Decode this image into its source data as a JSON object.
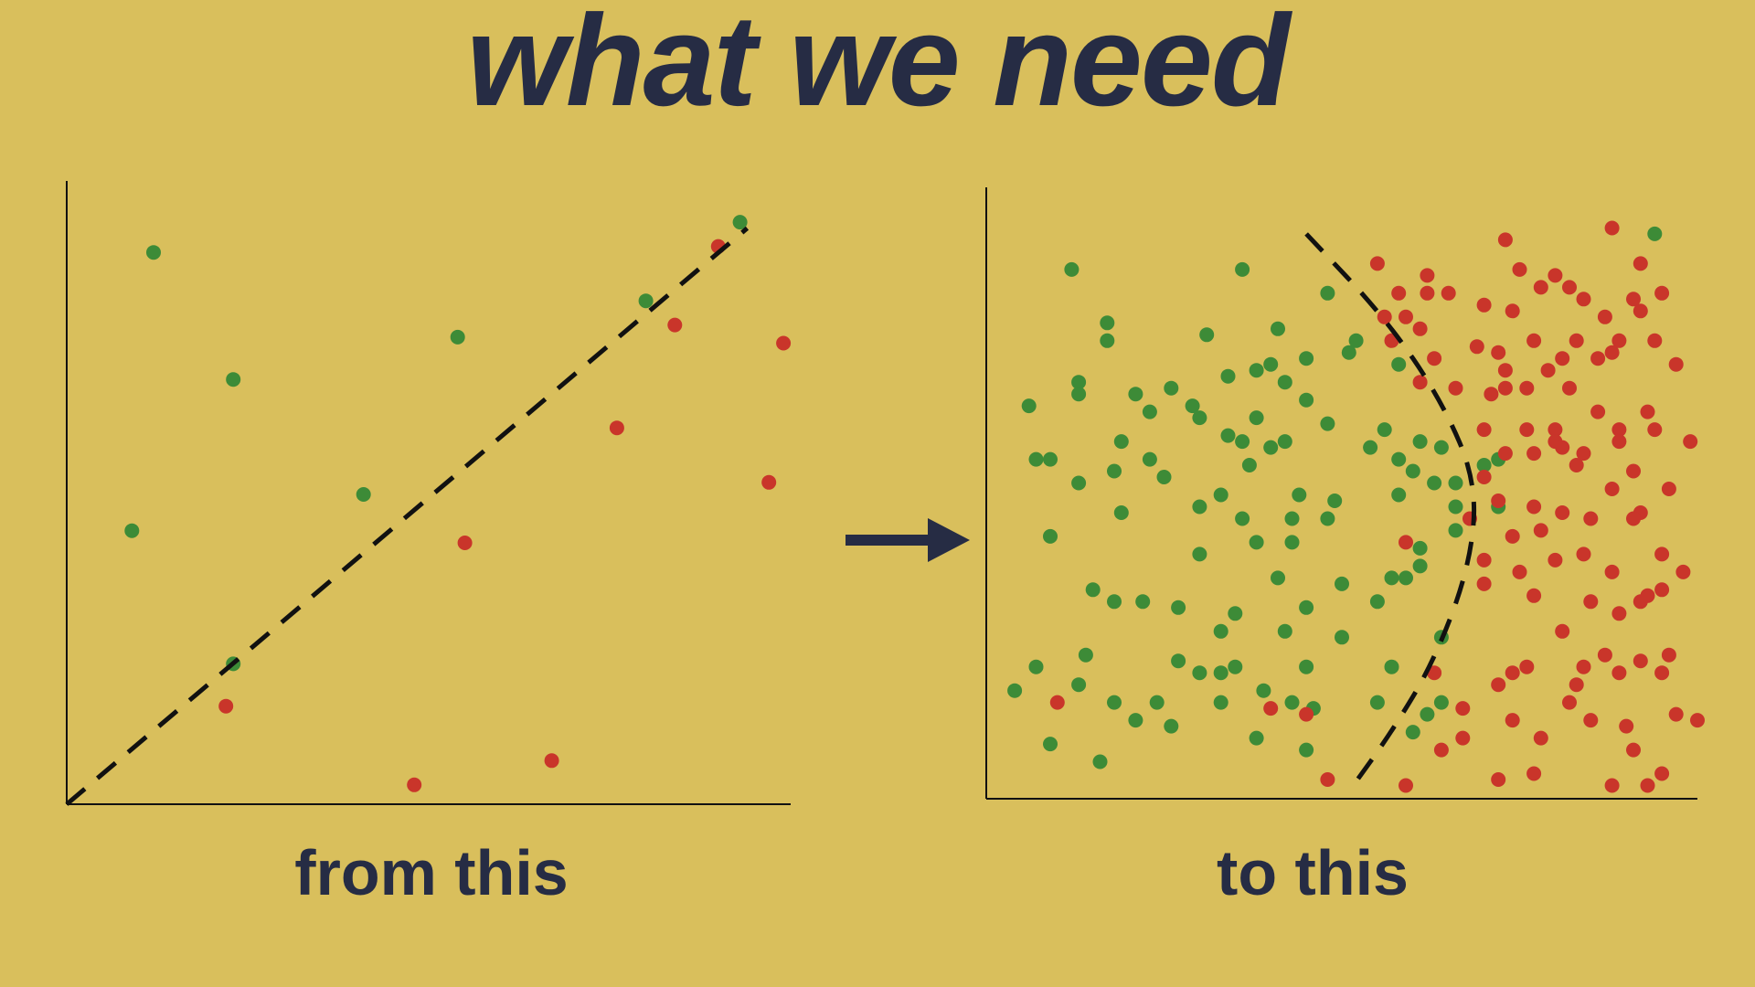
{
  "title": "what we need",
  "captions": {
    "left": "from this",
    "right": "to this"
  },
  "colors": {
    "background": "#d9bf5c",
    "class_a": "#3d8b37",
    "class_b": "#c9352a",
    "text": "#262c44",
    "boundary": "#111111"
  },
  "icons": {
    "arrow": "right-arrow-icon"
  },
  "chart_data": [
    {
      "type": "scatter",
      "title": "",
      "xlabel": "",
      "ylabel": "",
      "xlim": [
        0,
        100
      ],
      "ylim": [
        0,
        100
      ],
      "grid": false,
      "legend": "none",
      "boundary": {
        "style": "dashed",
        "kind": "line",
        "points": [
          [
            0,
            0
          ],
          [
            94,
            94
          ]
        ]
      },
      "series": [
        {
          "color": "green",
          "points": [
            [
              12,
              90
            ],
            [
              23,
              69
            ],
            [
              9,
              44
            ],
            [
              54,
              76
            ],
            [
              41,
              50
            ],
            [
              23,
              22
            ],
            [
              80,
              82
            ],
            [
              93,
              95
            ]
          ]
        },
        {
          "color": "red",
          "points": [
            [
              90,
              91
            ],
            [
              84,
              78
            ],
            [
              99,
              75
            ],
            [
              76,
              61
            ],
            [
              97,
              52
            ],
            [
              55,
              42
            ],
            [
              22,
              15
            ],
            [
              48,
              2
            ],
            [
              67,
              6
            ]
          ]
        }
      ]
    },
    {
      "type": "scatter",
      "title": "",
      "xlabel": "",
      "ylabel": "",
      "xlim": [
        0,
        100
      ],
      "ylim": [
        0,
        100
      ],
      "grid": false,
      "legend": "none",
      "boundary": {
        "style": "dashed",
        "kind": "curve",
        "points": [
          [
            45,
            94
          ],
          [
            56,
            80
          ],
          [
            64,
            66
          ],
          [
            69,
            52
          ],
          [
            68,
            38
          ],
          [
            63,
            22
          ],
          [
            57,
            10
          ],
          [
            51,
            0
          ]
        ]
      },
      "series": [
        {
          "color": "green",
          "points": [
            [
              12,
              88
            ],
            [
              36,
              88
            ],
            [
              94,
              94
            ],
            [
              48,
              84
            ],
            [
              17,
              79
            ],
            [
              17,
              76
            ],
            [
              31,
              77
            ],
            [
              41,
              78
            ],
            [
              52,
              76
            ],
            [
              45,
              73
            ],
            [
              40,
              72
            ],
            [
              34,
              70
            ],
            [
              38,
              71
            ],
            [
              13,
              69
            ],
            [
              26,
              68
            ],
            [
              21,
              67
            ],
            [
              13,
              67
            ],
            [
              6,
              65
            ],
            [
              29,
              65
            ],
            [
              45,
              66
            ],
            [
              51,
              74
            ],
            [
              58,
              72
            ],
            [
              42,
              69
            ],
            [
              30,
              63
            ],
            [
              38,
              63
            ],
            [
              23,
              64
            ],
            [
              48,
              62
            ],
            [
              36,
              59
            ],
            [
              42,
              59
            ],
            [
              34,
              60
            ],
            [
              56,
              61
            ],
            [
              61,
              59
            ],
            [
              64,
              58
            ],
            [
              54,
              58
            ],
            [
              19,
              59
            ],
            [
              9,
              56
            ],
            [
              7,
              56
            ],
            [
              18,
              54
            ],
            [
              23,
              56
            ],
            [
              37,
              55
            ],
            [
              40,
              58
            ],
            [
              58,
              56
            ],
            [
              70,
              55
            ],
            [
              72,
              56
            ],
            [
              63,
              52
            ],
            [
              66,
              52
            ],
            [
              13,
              52
            ],
            [
              25,
              53
            ],
            [
              33,
              50
            ],
            [
              44,
              50
            ],
            [
              58,
              50
            ],
            [
              60,
              54
            ],
            [
              49,
              49
            ],
            [
              19,
              47
            ],
            [
              30,
              48
            ],
            [
              43,
              46
            ],
            [
              48,
              46
            ],
            [
              66,
              48
            ],
            [
              72,
              48
            ],
            [
              9,
              43
            ],
            [
              36,
              46
            ],
            [
              30,
              40
            ],
            [
              38,
              42
            ],
            [
              43,
              42
            ],
            [
              41,
              36
            ],
            [
              50,
              35
            ],
            [
              57,
              36
            ],
            [
              61,
              38
            ],
            [
              61,
              41
            ],
            [
              15,
              34
            ],
            [
              18,
              32
            ],
            [
              22,
              32
            ],
            [
              27,
              31
            ],
            [
              35,
              30
            ],
            [
              45,
              31
            ],
            [
              55,
              32
            ],
            [
              59,
              36
            ],
            [
              66,
              44
            ],
            [
              33,
              27
            ],
            [
              42,
              27
            ],
            [
              50,
              26
            ],
            [
              64,
              26
            ],
            [
              14,
              23
            ],
            [
              7,
              21
            ],
            [
              27,
              22
            ],
            [
              35,
              21
            ],
            [
              30,
              20
            ],
            [
              33,
              20
            ],
            [
              45,
              21
            ],
            [
              57,
              21
            ],
            [
              13,
              18
            ],
            [
              4,
              17
            ],
            [
              39,
              17
            ],
            [
              46,
              14
            ],
            [
              55,
              15
            ],
            [
              64,
              15
            ],
            [
              18,
              15
            ],
            [
              24,
              15
            ],
            [
              33,
              15
            ],
            [
              43,
              15
            ],
            [
              62,
              13
            ],
            [
              26,
              11
            ],
            [
              38,
              9
            ],
            [
              45,
              7
            ],
            [
              60,
              10
            ],
            [
              9,
              8
            ],
            [
              16,
              5
            ],
            [
              21,
              12
            ]
          ]
        },
        {
          "color": "red",
          "points": [
            [
              73,
              93
            ],
            [
              88,
              95
            ],
            [
              92,
              89
            ],
            [
              55,
              89
            ],
            [
              62,
              87
            ],
            [
              75,
              88
            ],
            [
              80,
              87
            ],
            [
              78,
              85
            ],
            [
              82,
              85
            ],
            [
              58,
              84
            ],
            [
              62,
              84
            ],
            [
              65,
              84
            ],
            [
              70,
              82
            ],
            [
              84,
              83
            ],
            [
              91,
              83
            ],
            [
              95,
              84
            ],
            [
              56,
              80
            ],
            [
              59,
              80
            ],
            [
              61,
              78
            ],
            [
              74,
              81
            ],
            [
              87,
              80
            ],
            [
              92,
              81
            ],
            [
              57,
              76
            ],
            [
              69,
              75
            ],
            [
              77,
              76
            ],
            [
              83,
              76
            ],
            [
              89,
              76
            ],
            [
              94,
              76
            ],
            [
              63,
              73
            ],
            [
              72,
              74
            ],
            [
              81,
              73
            ],
            [
              86,
              73
            ],
            [
              88,
              74
            ],
            [
              73,
              71
            ],
            [
              79,
              71
            ],
            [
              97,
              72
            ],
            [
              61,
              69
            ],
            [
              66,
              68
            ],
            [
              71,
              67
            ],
            [
              76,
              68
            ],
            [
              73,
              68
            ],
            [
              82,
              68
            ],
            [
              86,
              64
            ],
            [
              93,
              64
            ],
            [
              70,
              61
            ],
            [
              76,
              61
            ],
            [
              80,
              61
            ],
            [
              89,
              61
            ],
            [
              94,
              61
            ],
            [
              80,
              59
            ],
            [
              89,
              59
            ],
            [
              99,
              59
            ],
            [
              73,
              57
            ],
            [
              77,
              57
            ],
            [
              81,
              58
            ],
            [
              84,
              57
            ],
            [
              91,
              54
            ],
            [
              83,
              55
            ],
            [
              70,
              53
            ],
            [
              88,
              51
            ],
            [
              96,
              51
            ],
            [
              72,
              49
            ],
            [
              77,
              48
            ],
            [
              81,
              47
            ],
            [
              92,
              47
            ],
            [
              85,
              46
            ],
            [
              91,
              46
            ],
            [
              68,
              46
            ],
            [
              74,
              43
            ],
            [
              78,
              44
            ],
            [
              84,
              40
            ],
            [
              95,
              40
            ],
            [
              88,
              37
            ],
            [
              59,
              42
            ],
            [
              70,
              39
            ],
            [
              80,
              39
            ],
            [
              75,
              37
            ],
            [
              98,
              37
            ],
            [
              92,
              32
            ],
            [
              93,
              33
            ],
            [
              95,
              34
            ],
            [
              70,
              35
            ],
            [
              77,
              33
            ],
            [
              85,
              32
            ],
            [
              89,
              30
            ],
            [
              81,
              27
            ],
            [
              63,
              20
            ],
            [
              76,
              21
            ],
            [
              84,
              21
            ],
            [
              92,
              22
            ],
            [
              74,
              20
            ],
            [
              72,
              18
            ],
            [
              83,
              18
            ],
            [
              87,
              23
            ],
            [
              96,
              23
            ],
            [
              89,
              20
            ],
            [
              95,
              20
            ],
            [
              82,
              15
            ],
            [
              67,
              14
            ],
            [
              74,
              12
            ],
            [
              85,
              12
            ],
            [
              64,
              7
            ],
            [
              67,
              9
            ],
            [
              78,
              9
            ],
            [
              90,
              11
            ],
            [
              91,
              7
            ],
            [
              97,
              13
            ],
            [
              100,
              12
            ],
            [
              93,
              1
            ],
            [
              59,
              1
            ],
            [
              48,
              2
            ],
            [
              72,
              2
            ],
            [
              77,
              3
            ],
            [
              88,
              1
            ],
            [
              45,
              13
            ],
            [
              40,
              14
            ],
            [
              95,
              3
            ],
            [
              10,
              15
            ]
          ]
        }
      ]
    }
  ]
}
